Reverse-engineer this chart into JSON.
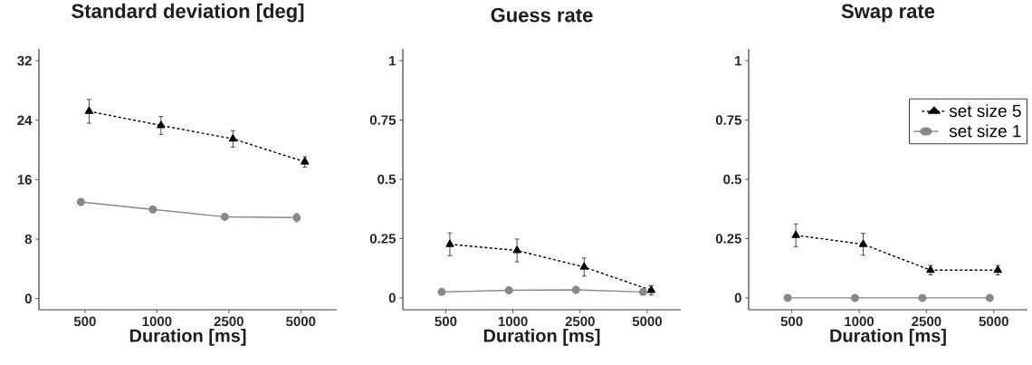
{
  "chart_data": [
    {
      "type": "line",
      "title": "Standard deviation [deg]",
      "xlabel": "Duration [ms]",
      "categories": [
        "500",
        "1000",
        "2500",
        "5000"
      ],
      "ylim": [
        -1.5,
        33.6
      ],
      "yticks": [
        0,
        8,
        16,
        24,
        32
      ],
      "series": [
        {
          "color": "#000000",
          "marker": "triangle",
          "line_style": "dashed",
          "values": [
            25.2,
            23.3,
            21.5,
            18.4
          ],
          "errors": [
            1.6,
            1.2,
            1.1,
            0.7
          ]
        },
        {
          "color": "#888888",
          "marker": "circle",
          "line_style": "solid",
          "values": [
            13.0,
            12.0,
            11.0,
            10.9
          ],
          "errors": [
            null,
            0.4,
            null,
            0.6
          ]
        }
      ]
    },
    {
      "type": "line",
      "title": "Guess rate",
      "xlabel": "Duration [ms]",
      "categories": [
        "500",
        "1000",
        "2500",
        "5000"
      ],
      "ylim": [
        -0.05,
        1.05
      ],
      "yticks": [
        0,
        0.25,
        0.5,
        0.75,
        1
      ],
      "series": [
        {
          "color": "#000000",
          "marker": "triangle",
          "line_style": "dashed",
          "values": [
            0.226,
            0.2,
            0.13,
            0.032
          ],
          "errors": [
            0.048,
            0.048,
            0.038,
            0.02
          ]
        },
        {
          "color": "#888888",
          "marker": "circle",
          "line_style": "solid",
          "values": [
            0.025,
            0.032,
            0.034,
            0.025
          ]
        }
      ]
    },
    {
      "type": "line",
      "title": "Swap rate",
      "xlabel": "Duration [ms]",
      "categories": [
        "500",
        "1000",
        "2500",
        "5000"
      ],
      "ylim": [
        -0.05,
        1.05
      ],
      "yticks": [
        0,
        0.25,
        0.5,
        0.75,
        1
      ],
      "legend": "top right",
      "series": [
        {
          "name": "set size 5",
          "color": "#000000",
          "marker": "triangle",
          "line_style": "dashed",
          "values": [
            0.264,
            0.226,
            0.117,
            0.117
          ],
          "errors": [
            0.048,
            0.046,
            0.02,
            0.02
          ]
        },
        {
          "name": "set size 1",
          "color": "#888888",
          "marker": "circle",
          "line_style": "solid",
          "values": [
            0,
            0,
            0,
            0
          ]
        }
      ]
    }
  ]
}
